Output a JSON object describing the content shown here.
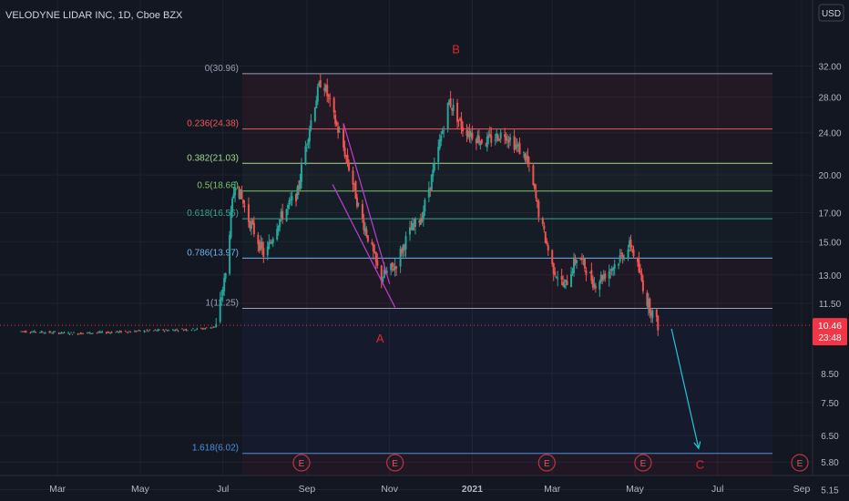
{
  "header": {
    "title": "VELODYNE LIDAR INC, 1D, Cboe BZX",
    "currency": "USD"
  },
  "colors": {
    "background": "#131722",
    "up": "#26a69a",
    "down": "#ef5350",
    "fib_zone": "#2a1a22",
    "last_price_badge": "#f23645",
    "arrow": "#22c6d6",
    "wedge": "#c23bd4",
    "wave_label": "#e0262b"
  },
  "chart_data": {
    "type": "candlestick",
    "title": "VELODYNE LIDAR INC, 1D, Cboe BZX",
    "x_ticks": [
      "Mar",
      "May",
      "Jul",
      "Sep",
      "Nov",
      "2021",
      "Mar",
      "May",
      "Jul",
      "Sep"
    ],
    "y_ticks": [
      "32.00",
      "28.00",
      "24.00",
      "20.00",
      "17.00",
      "15.00",
      "13.00",
      "11.50",
      "10.46",
      "8.50",
      "7.50",
      "6.50",
      "5.80",
      "5.15"
    ],
    "y_scale": "log",
    "y_range": [
      5.0,
      34.0
    ],
    "last_price": "10.46",
    "countdown": "23:48",
    "fib_levels": [
      {
        "ratio": "0",
        "price": 30.96,
        "label": "0(30.96)",
        "color": "#9aa0b4"
      },
      {
        "ratio": "0.236",
        "price": 24.38,
        "label": "0.236(24.38)",
        "color": "#f05a5a"
      },
      {
        "ratio": "0.382",
        "price": 21.03,
        "label": "0.382(21.03)",
        "color": "#a6d98a"
      },
      {
        "ratio": "0.5",
        "price": 18.66,
        "label": "0.5(18.66)",
        "color": "#7fc46a"
      },
      {
        "ratio": "0.618",
        "price": 16.56,
        "label": "0.618(16.56)",
        "color": "#3aa68f"
      },
      {
        "ratio": "0.786",
        "price": 13.97,
        "label": "0.786(13.97)",
        "color": "#6fb4ee"
      },
      {
        "ratio": "1",
        "price": 11.25,
        "label": "1(11.25)",
        "color": "#9aa0b4"
      },
      {
        "ratio": "1.618",
        "price": 6.02,
        "label": "1.618(6.02)",
        "color": "#4a90e2"
      }
    ],
    "wave_labels": [
      {
        "text": "A",
        "price": 9.9,
        "date": "2020-10-25"
      },
      {
        "text": "B",
        "price": 34.5,
        "date": "2020-12-20"
      },
      {
        "text": "C",
        "price": 5.75,
        "date": "2021-06-18"
      }
    ],
    "earnings_markers": [
      "E",
      "E",
      "E",
      "E",
      "E"
    ],
    "price_path": [
      {
        "date": "2020-02-01",
        "price": 10.2
      },
      {
        "date": "2020-03-15",
        "price": 10.1
      },
      {
        "date": "2020-05-01",
        "price": 10.2
      },
      {
        "date": "2020-06-15",
        "price": 10.3
      },
      {
        "date": "2020-06-26",
        "price": 10.4
      },
      {
        "date": "2020-07-03",
        "price": 13.0
      },
      {
        "date": "2020-07-10",
        "price": 19.5
      },
      {
        "date": "2020-07-20",
        "price": 16.5
      },
      {
        "date": "2020-08-01",
        "price": 14.0
      },
      {
        "date": "2020-08-10",
        "price": 16.2
      },
      {
        "date": "2020-08-25",
        "price": 18.5
      },
      {
        "date": "2020-09-05",
        "price": 26.0
      },
      {
        "date": "2020-09-12",
        "price": 30.5
      },
      {
        "date": "2020-09-20",
        "price": 26.0
      },
      {
        "date": "2020-09-28",
        "price": 22.5
      },
      {
        "date": "2020-10-10",
        "price": 17.0
      },
      {
        "date": "2020-10-25",
        "price": 12.8
      },
      {
        "date": "2020-11-05",
        "price": 13.5
      },
      {
        "date": "2020-11-15",
        "price": 15.5
      },
      {
        "date": "2020-11-25",
        "price": 16.8
      },
      {
        "date": "2020-12-05",
        "price": 21.0
      },
      {
        "date": "2020-12-15",
        "price": 27.5
      },
      {
        "date": "2020-12-25",
        "price": 24.5
      },
      {
        "date": "2021-01-10",
        "price": 23.0
      },
      {
        "date": "2021-01-25",
        "price": 24.0
      },
      {
        "date": "2021-02-10",
        "price": 21.5
      },
      {
        "date": "2021-02-20",
        "price": 16.5
      },
      {
        "date": "2021-03-01",
        "price": 13.5
      },
      {
        "date": "2021-03-10",
        "price": 12.3
      },
      {
        "date": "2021-03-20",
        "price": 14.2
      },
      {
        "date": "2021-04-01",
        "price": 12.5
      },
      {
        "date": "2021-04-15",
        "price": 13.5
      },
      {
        "date": "2021-04-28",
        "price": 14.8
      },
      {
        "date": "2021-05-10",
        "price": 11.6
      },
      {
        "date": "2021-05-18",
        "price": 10.46
      }
    ]
  }
}
